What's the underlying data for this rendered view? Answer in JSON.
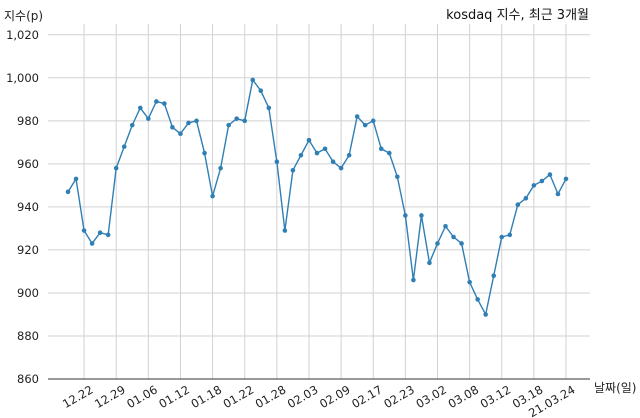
{
  "chart_data": {
    "type": "line",
    "title": "kosdaq 지수, 최근 3개월",
    "xlabel": "날짜(일)",
    "ylabel": "지수(p)",
    "ylim": [
      860,
      1025
    ],
    "yticks": [
      860,
      880,
      900,
      920,
      940,
      960,
      980,
      1000,
      1020
    ],
    "ytick_labels": [
      "860",
      "880",
      "900",
      "920",
      "940",
      "960",
      "980",
      "1,000",
      "1,020"
    ],
    "xtick_labels": [
      "12.22",
      "12.29",
      "01.06",
      "01.12",
      "01.18",
      "01.22",
      "01.28",
      "02.03",
      "02.09",
      "02.17",
      "02.23",
      "03.02",
      "03.08",
      "03.12",
      "03.18",
      "21.03.24"
    ],
    "xtick_indices": [
      2,
      6,
      10,
      14,
      18,
      22,
      26,
      30,
      34,
      38,
      42,
      46,
      50,
      54,
      58,
      62
    ],
    "grid": true,
    "line_color": "#2f7fb5",
    "series": [
      {
        "values": [
          947,
          953,
          929,
          923,
          928,
          927,
          958,
          968,
          978,
          986,
          981,
          989,
          988,
          977,
          974,
          979,
          980,
          965,
          945,
          958,
          978,
          981,
          980,
          999,
          994,
          986,
          961,
          929,
          957,
          964,
          971,
          965,
          967,
          961,
          958,
          964,
          982,
          978,
          980,
          967,
          965,
          954,
          936,
          906,
          936,
          914,
          923,
          931,
          926,
          923,
          905,
          897,
          890,
          908,
          926,
          927,
          941,
          944,
          950,
          952,
          955,
          946,
          953
        ]
      }
    ]
  }
}
